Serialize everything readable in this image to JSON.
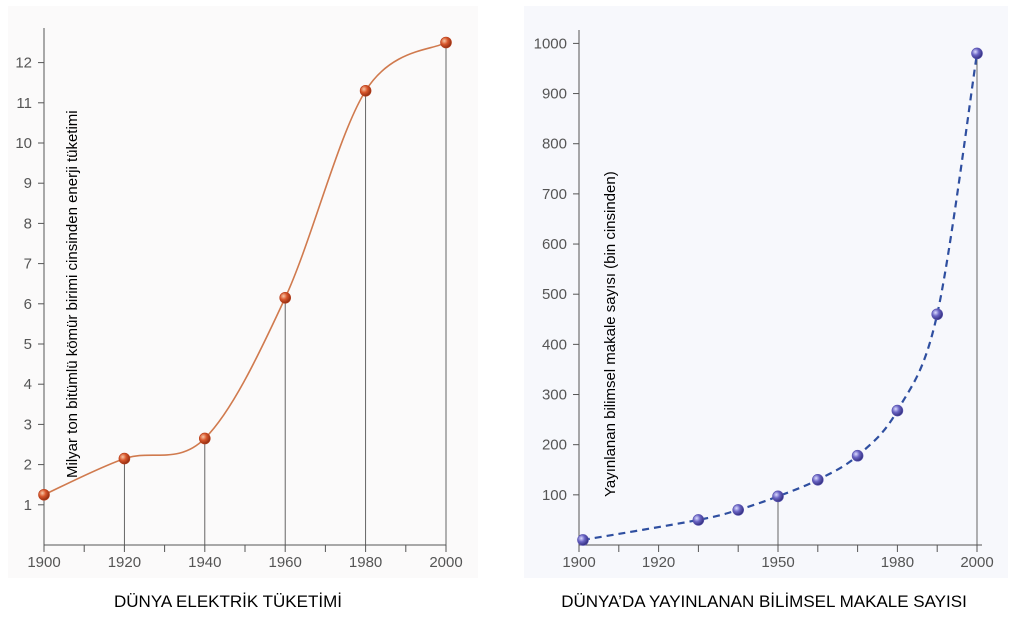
{
  "chart_data": [
    {
      "type": "line",
      "title": "DÜNYA ELEKTRİK TÜKETİMİ",
      "xlabel": "",
      "ylabel": "Milyar ton bitümlü kömür birimi cinsinden enerji tüketimi",
      "xlim": [
        1900,
        2000
      ],
      "ylim": [
        0,
        13
      ],
      "x_ticks": [
        "1900",
        "1920",
        "1940",
        "1960",
        "1980",
        "2000"
      ],
      "y_ticks": [
        "1",
        "2",
        "3",
        "4",
        "5",
        "6",
        "7",
        "8",
        "9",
        "10",
        "11",
        "12"
      ],
      "x": [
        1900,
        1920,
        1940,
        1960,
        1980,
        2000
      ],
      "values": [
        1.25,
        2.15,
        2.65,
        6.15,
        11.3,
        12.5
      ],
      "colors": {
        "line": "#d07a4e",
        "marker": "#b8401c"
      }
    },
    {
      "type": "line",
      "title": "DÜNYA’DA YAYINLANAN BİLİMSEL MAKALE SAYISI",
      "xlabel": "",
      "ylabel": "Yayınlanan bilimsel makale sayısı (bin cinsinden)",
      "xlim": [
        1900,
        2000
      ],
      "ylim": [
        0,
        1050
      ],
      "x_ticks": [
        "1900",
        "1920",
        "1950",
        "1980",
        "2000"
      ],
      "x_tick_positions": [
        1900,
        1920,
        1950,
        1980,
        2000
      ],
      "y_ticks": [
        "100",
        "200",
        "300",
        "400",
        "500",
        "600",
        "700",
        "800",
        "900",
        "1000"
      ],
      "x": [
        1901,
        1930,
        1940,
        1950,
        1960,
        1970,
        1980,
        1990,
        2000
      ],
      "values": [
        10,
        50,
        70,
        97,
        130,
        178,
        268,
        460,
        980
      ],
      "colors": {
        "line": "#2f4fa0",
        "marker": "#5a55b0"
      }
    }
  ]
}
